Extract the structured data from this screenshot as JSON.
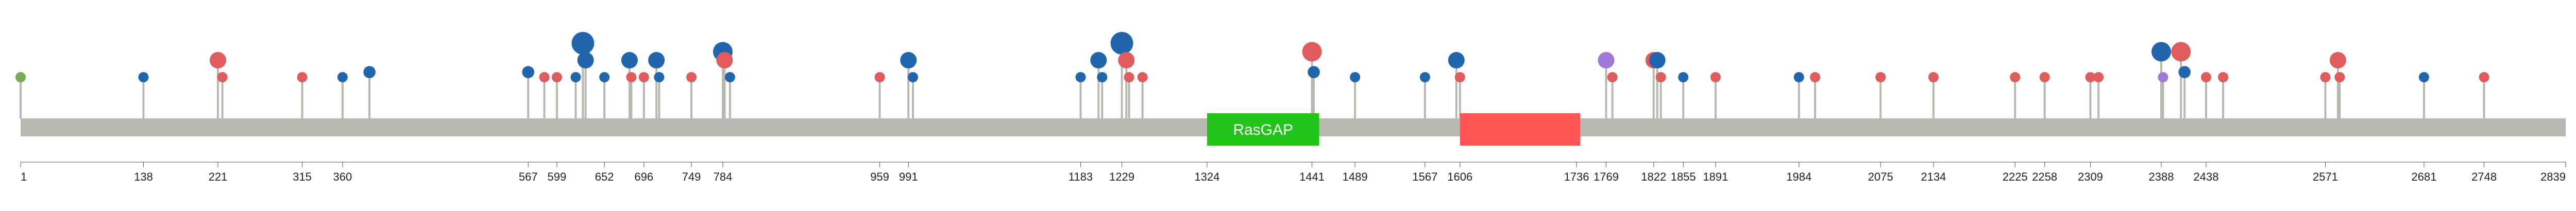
{
  "chart_data": {
    "type": "lollipop",
    "protein_length": 2839,
    "axis_ticks": [
      1,
      138,
      221,
      315,
      360,
      567,
      599,
      652,
      696,
      749,
      784,
      959,
      991,
      1183,
      1229,
      1324,
      1441,
      1489,
      1567,
      1606,
      1736,
      1769,
      1822,
      1855,
      1891,
      1984,
      2075,
      2134,
      2225,
      2258,
      2309,
      2388,
      2438,
      2571,
      2681,
      2748,
      2839
    ],
    "domains": [
      {
        "name": "RasGAP",
        "start": 1324,
        "end": 1449,
        "color": "#22c41a",
        "label": "RasGAP"
      },
      {
        "name": "",
        "start": 1606,
        "end": 1740,
        "color": "#ff5555",
        "label": ""
      }
    ],
    "mutations": [
      {
        "pos": 1,
        "count": 1,
        "color": "#77aa55"
      },
      {
        "pos": 138,
        "count": 1,
        "color": "#2166ac"
      },
      {
        "pos": 221,
        "count": 2,
        "color": "#e05c5c"
      },
      {
        "pos": 226,
        "count": 1,
        "color": "#e05c5c"
      },
      {
        "pos": 315,
        "count": 1,
        "color": "#e05c5c"
      },
      {
        "pos": 360,
        "count": 1,
        "color": "#2166ac"
      },
      {
        "pos": 390,
        "count": 1.3,
        "color": "#2166ac"
      },
      {
        "pos": 567,
        "count": 1.3,
        "color": "#2166ac"
      },
      {
        "pos": 585,
        "count": 1,
        "color": "#e05c5c"
      },
      {
        "pos": 599,
        "count": 1,
        "color": "#e05c5c"
      },
      {
        "pos": 620,
        "count": 1,
        "color": "#2166ac"
      },
      {
        "pos": 628,
        "count": 3,
        "color": "#2166ac"
      },
      {
        "pos": 631,
        "count": 2,
        "color": "#2166ac"
      },
      {
        "pos": 652,
        "count": 1,
        "color": "#2166ac"
      },
      {
        "pos": 680,
        "count": 2,
        "color": "#2166ac"
      },
      {
        "pos": 682,
        "count": 1,
        "color": "#e05c5c"
      },
      {
        "pos": 696,
        "count": 1,
        "color": "#e05c5c"
      },
      {
        "pos": 710,
        "count": 2,
        "color": "#2166ac"
      },
      {
        "pos": 713,
        "count": 1,
        "color": "#2166ac"
      },
      {
        "pos": 749,
        "count": 1,
        "color": "#e05c5c"
      },
      {
        "pos": 784,
        "count": 2.5,
        "color": "#2166ac"
      },
      {
        "pos": 786,
        "count": 2,
        "color": "#e05c5c"
      },
      {
        "pos": 792,
        "count": 1,
        "color": "#2166ac"
      },
      {
        "pos": 959,
        "count": 1,
        "color": "#e05c5c"
      },
      {
        "pos": 991,
        "count": 2,
        "color": "#2166ac"
      },
      {
        "pos": 996,
        "count": 1,
        "color": "#2166ac"
      },
      {
        "pos": 1183,
        "count": 1,
        "color": "#2166ac"
      },
      {
        "pos": 1203,
        "count": 2,
        "color": "#2166ac"
      },
      {
        "pos": 1207,
        "count": 1,
        "color": "#2166ac"
      },
      {
        "pos": 1229,
        "count": 3,
        "color": "#2166ac"
      },
      {
        "pos": 1234,
        "count": 2,
        "color": "#e05c5c"
      },
      {
        "pos": 1237,
        "count": 1,
        "color": "#e05c5c"
      },
      {
        "pos": 1252,
        "count": 1,
        "color": "#e05c5c"
      },
      {
        "pos": 1441,
        "count": 2.5,
        "color": "#e05c5c"
      },
      {
        "pos": 1443,
        "count": 1.3,
        "color": "#2166ac"
      },
      {
        "pos": 1489,
        "count": 1,
        "color": "#2166ac"
      },
      {
        "pos": 1567,
        "count": 1,
        "color": "#2166ac"
      },
      {
        "pos": 1602,
        "count": 2,
        "color": "#2166ac"
      },
      {
        "pos": 1606,
        "count": 1,
        "color": "#e05c5c"
      },
      {
        "pos": 1769,
        "count": 2,
        "color": "#9e79d8"
      },
      {
        "pos": 1776,
        "count": 1,
        "color": "#e05c5c"
      },
      {
        "pos": 1822,
        "count": 2,
        "color": "#e05c5c"
      },
      {
        "pos": 1826,
        "count": 2,
        "color": "#2166ac"
      },
      {
        "pos": 1830,
        "count": 1,
        "color": "#e05c5c"
      },
      {
        "pos": 1855,
        "count": 1,
        "color": "#2166ac"
      },
      {
        "pos": 1891,
        "count": 1,
        "color": "#e05c5c"
      },
      {
        "pos": 1984,
        "count": 1,
        "color": "#2166ac"
      },
      {
        "pos": 2002,
        "count": 1,
        "color": "#e05c5c"
      },
      {
        "pos": 2075,
        "count": 1,
        "color": "#e05c5c"
      },
      {
        "pos": 2134,
        "count": 1,
        "color": "#e05c5c"
      },
      {
        "pos": 2225,
        "count": 1,
        "color": "#e05c5c"
      },
      {
        "pos": 2258,
        "count": 1,
        "color": "#e05c5c"
      },
      {
        "pos": 2309,
        "count": 1,
        "color": "#e05c5c"
      },
      {
        "pos": 2318,
        "count": 1,
        "color": "#e05c5c"
      },
      {
        "pos": 2388,
        "count": 2.5,
        "color": "#2166ac"
      },
      {
        "pos": 2390,
        "count": 1,
        "color": "#9e79d8"
      },
      {
        "pos": 2410,
        "count": 2.5,
        "color": "#e05c5c"
      },
      {
        "pos": 2414,
        "count": 1.3,
        "color": "#2166ac"
      },
      {
        "pos": 2438,
        "count": 1,
        "color": "#e05c5c"
      },
      {
        "pos": 2457,
        "count": 1,
        "color": "#e05c5c"
      },
      {
        "pos": 2571,
        "count": 1,
        "color": "#e05c5c"
      },
      {
        "pos": 2585,
        "count": 2,
        "color": "#e05c5c"
      },
      {
        "pos": 2587,
        "count": 1,
        "color": "#e05c5c"
      },
      {
        "pos": 2681,
        "count": 1,
        "color": "#2166ac"
      },
      {
        "pos": 2748,
        "count": 1,
        "color": "#e05c5c"
      }
    ]
  },
  "colors": {
    "backbone": "#b8b8b0",
    "stem": "#b8b8b0",
    "axis": "#555555"
  }
}
